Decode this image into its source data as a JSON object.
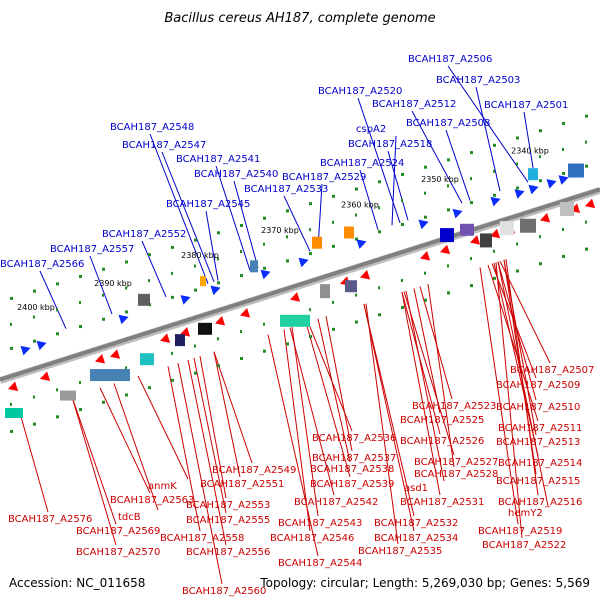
{
  "title": "Bacillus cereus AH187, complete genome",
  "footer": {
    "accession": "Accession: NC_011658",
    "topology": "Topology: circular; Length: 5,269,030 bp; Genes: 5,569"
  },
  "colors": {
    "forward_label": "#0000cc",
    "reverse_label": "#cc0000",
    "backbone": "#808080",
    "tick": "#228b22"
  },
  "ticks": [
    "2340 kbp",
    "2350 kbp",
    "2360 kbp",
    "2370 kbp",
    "2380 kbp",
    "2390 kbp",
    "2400 kbp"
  ],
  "forward_labels": [
    "BCAH187_A2506",
    "BCAH187_A2503",
    "BCAH187_A2520",
    "BCAH187_A2512",
    "BCAH187_A2501",
    "cspA2",
    "BCAH187_A2508",
    "BCAH187_A2548",
    "BCAH187_A2518",
    "BCAH187_A2547",
    "BCAH187_A2541",
    "BCAH187_A2524",
    "BCAH187_A2540",
    "BCAH187_A2529",
    "BCAH187_A2533",
    "BCAH187_A2545",
    "BCAH187_A2552",
    "BCAH187_A2557",
    "BCAH187_A2566"
  ],
  "reverse_labels": [
    "BCAH187_A2507",
    "BCAH187_A2509",
    "BCAH187_A2510",
    "BCAH187_A2523",
    "BCAH187_A2525",
    "BCAH187_A2511",
    "BCAH187_A2536",
    "BCAH187_A2526",
    "BCAH187_A2513",
    "BCAH187_A2537",
    "BCAH187_A2527",
    "BCAH187_A2514",
    "BCAH187_A2549",
    "BCAH187_A2538",
    "BCAH187_A2528",
    "anmK",
    "BCAH187_A2539",
    "asd1",
    "BCAH187_A2515",
    "BCAH187_A2551",
    "BCAH187_A2563",
    "BCAH187_A2542",
    "BCAH187_A2531",
    "BCAH187_A2516",
    "BCAH187_A2553",
    "hemY2",
    "tdcB",
    "BCAH187_A2576",
    "BCAH187_A2555",
    "BCAH187_A2543",
    "BCAH187_A2532",
    "BCAH187_A2569",
    "BCAH187_A2519",
    "BCAH187_A2558",
    "BCAH187_A2546",
    "BCAH187_A2534",
    "BCAH187_A2570",
    "BCAH187_A2556",
    "BCAH187_A2535",
    "BCAH187_A2522",
    "BCAH187_A2544",
    "BCAH187_A2560"
  ]
}
